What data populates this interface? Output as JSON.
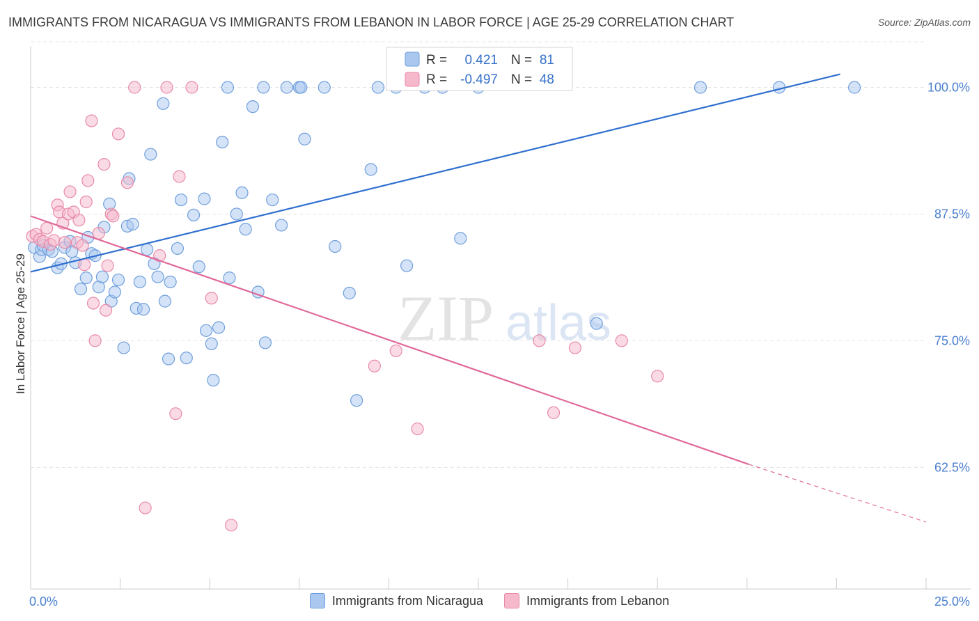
{
  "header": {
    "title": "IMMIGRANTS FROM NICARAGUA VS IMMIGRANTS FROM LEBANON IN LABOR FORCE | AGE 25-29 CORRELATION CHART",
    "source": "Source: ZipAtlas.com"
  },
  "watermark": {
    "zip": "ZIP",
    "atlas": "atlas"
  },
  "stats": [
    {
      "r_label": "R =",
      "r_value": "0.421",
      "n_label": "N =",
      "n_value": "81"
    },
    {
      "r_label": "R =",
      "r_value": "-0.497",
      "n_label": "N =",
      "n_value": "48"
    }
  ],
  "colors": {
    "nicaragua_fill": "#aac8ef",
    "nicaragua_stroke": "#6f9fdc",
    "nicaragua_line": "#2f6fcf",
    "lebanon_fill": "#f6b8cb",
    "lebanon_stroke": "#e88aa8",
    "lebanon_line": "#e0699a",
    "axis_text": "#4a7fd0",
    "grid": "#e4e4e4"
  },
  "chart_data": {
    "type": "scatter",
    "title": "IMMIGRANTS FROM NICARAGUA VS IMMIGRANTS FROM LEBANON IN LABOR FORCE | AGE 25-29 CORRELATION CHART",
    "xlabel": "",
    "ylabel": "In Labor Force | Age 25-29",
    "xlim": [
      0,
      25
    ],
    "ylim": [
      50.5,
      104.5
    ],
    "x_tick_labels": [
      {
        "value": 0,
        "label": "0.0%"
      },
      {
        "value": 25,
        "label": "25.0%"
      }
    ],
    "y_tick_labels": [
      {
        "value": 100,
        "label": "100.0%"
      },
      {
        "value": 87.5,
        "label": "87.5%"
      },
      {
        "value": 75,
        "label": "75.0%"
      },
      {
        "value": 62.5,
        "label": "62.5%"
      }
    ],
    "grid": true,
    "legend_position": "bottom",
    "series": [
      {
        "name": "Immigrants from Nicaragua",
        "color": "#aac8ef",
        "trendline": {
          "x": [
            0,
            22.6
          ],
          "y": [
            81.8,
            101.3
          ]
        },
        "points": [
          [
            0.1,
            84.2
          ],
          [
            0.25,
            83.3
          ],
          [
            0.3,
            84.0
          ],
          [
            0.35,
            84.4
          ],
          [
            0.5,
            84.0
          ],
          [
            0.6,
            83.8
          ],
          [
            0.75,
            82.2
          ],
          [
            0.85,
            82.6
          ],
          [
            0.95,
            84.2
          ],
          [
            1.1,
            84.8
          ],
          [
            1.15,
            83.8
          ],
          [
            1.25,
            82.7
          ],
          [
            1.4,
            80.1
          ],
          [
            1.55,
            81.2
          ],
          [
            1.6,
            85.2
          ],
          [
            1.7,
            83.6
          ],
          [
            1.8,
            83.4
          ],
          [
            1.9,
            80.3
          ],
          [
            2.0,
            81.3
          ],
          [
            2.05,
            86.2
          ],
          [
            2.2,
            88.5
          ],
          [
            2.25,
            78.9
          ],
          [
            2.35,
            79.8
          ],
          [
            2.45,
            81.0
          ],
          [
            2.6,
            74.3
          ],
          [
            2.7,
            86.3
          ],
          [
            2.75,
            91.0
          ],
          [
            2.85,
            86.5
          ],
          [
            2.95,
            78.2
          ],
          [
            3.05,
            80.8
          ],
          [
            3.15,
            78.1
          ],
          [
            3.25,
            84.0
          ],
          [
            3.35,
            93.4
          ],
          [
            3.45,
            82.6
          ],
          [
            3.55,
            81.3
          ],
          [
            3.7,
            98.4
          ],
          [
            3.75,
            78.9
          ],
          [
            3.85,
            73.2
          ],
          [
            3.9,
            80.8
          ],
          [
            4.1,
            84.1
          ],
          [
            4.2,
            88.9
          ],
          [
            4.35,
            73.3
          ],
          [
            4.55,
            87.4
          ],
          [
            4.7,
            82.3
          ],
          [
            4.85,
            89.0
          ],
          [
            4.9,
            76.0
          ],
          [
            5.05,
            74.7
          ],
          [
            5.1,
            71.1
          ],
          [
            5.25,
            76.3
          ],
          [
            5.35,
            94.6
          ],
          [
            5.5,
            100.0
          ],
          [
            5.55,
            81.2
          ],
          [
            5.75,
            87.5
          ],
          [
            5.9,
            89.6
          ],
          [
            6.0,
            86.0
          ],
          [
            6.2,
            98.1
          ],
          [
            6.35,
            79.8
          ],
          [
            6.5,
            100.0
          ],
          [
            6.55,
            74.8
          ],
          [
            6.75,
            88.9
          ],
          [
            7.0,
            86.4
          ],
          [
            7.15,
            100.0
          ],
          [
            7.5,
            100.0
          ],
          [
            7.55,
            100.0
          ],
          [
            7.65,
            94.9
          ],
          [
            8.2,
            100.0
          ],
          [
            8.5,
            84.3
          ],
          [
            8.9,
            79.7
          ],
          [
            9.1,
            69.1
          ],
          [
            9.5,
            91.9
          ],
          [
            9.7,
            100.0
          ],
          [
            10.2,
            100.0
          ],
          [
            10.5,
            82.4
          ],
          [
            11.0,
            100.0
          ],
          [
            11.5,
            100.0
          ],
          [
            12.0,
            85.1
          ],
          [
            12.5,
            100.0
          ],
          [
            15.8,
            76.7
          ],
          [
            18.7,
            100.0
          ],
          [
            20.9,
            100.0
          ],
          [
            23.0,
            100.0
          ]
        ]
      },
      {
        "name": "Immigrants from Lebanon",
        "color": "#f6b8cb",
        "trendline": {
          "x": [
            0,
            20.05
          ],
          "y": [
            87.3,
            62.8
          ]
        },
        "dashed_extension": {
          "x": [
            20.05,
            25
          ],
          "y": [
            62.8,
            57.1
          ]
        },
        "points": [
          [
            0.05,
            85.3
          ],
          [
            0.15,
            85.5
          ],
          [
            0.25,
            85.0
          ],
          [
            0.35,
            84.8
          ],
          [
            0.45,
            86.1
          ],
          [
            0.55,
            84.5
          ],
          [
            0.65,
            84.9
          ],
          [
            0.75,
            88.4
          ],
          [
            0.8,
            87.7
          ],
          [
            0.9,
            86.6
          ],
          [
            0.95,
            84.7
          ],
          [
            1.05,
            87.5
          ],
          [
            1.1,
            89.7
          ],
          [
            1.2,
            87.7
          ],
          [
            1.3,
            84.7
          ],
          [
            1.35,
            86.9
          ],
          [
            1.45,
            84.4
          ],
          [
            1.5,
            82.5
          ],
          [
            1.55,
            88.7
          ],
          [
            1.6,
            90.8
          ],
          [
            1.7,
            96.7
          ],
          [
            1.75,
            78.7
          ],
          [
            1.8,
            75.0
          ],
          [
            1.9,
            85.6
          ],
          [
            2.05,
            92.4
          ],
          [
            2.1,
            78.0
          ],
          [
            2.15,
            82.4
          ],
          [
            2.25,
            87.5
          ],
          [
            2.3,
            87.3
          ],
          [
            2.45,
            95.4
          ],
          [
            2.7,
            90.6
          ],
          [
            2.9,
            100.0
          ],
          [
            3.2,
            58.5
          ],
          [
            3.6,
            83.4
          ],
          [
            3.8,
            100.0
          ],
          [
            4.05,
            67.8
          ],
          [
            4.15,
            91.2
          ],
          [
            4.5,
            100.0
          ],
          [
            5.05,
            79.2
          ],
          [
            5.6,
            56.8
          ],
          [
            9.6,
            72.5
          ],
          [
            10.2,
            74.0
          ],
          [
            10.8,
            66.3
          ],
          [
            14.2,
            75.0
          ],
          [
            14.6,
            67.9
          ],
          [
            15.2,
            74.3
          ],
          [
            16.5,
            75.0
          ],
          [
            17.5,
            71.5
          ]
        ]
      }
    ],
    "statistics": [
      {
        "series": "Immigrants from Nicaragua",
        "R": 0.421,
        "N": 81
      },
      {
        "series": "Immigrants from Lebanon",
        "R": -0.497,
        "N": 48
      }
    ]
  }
}
